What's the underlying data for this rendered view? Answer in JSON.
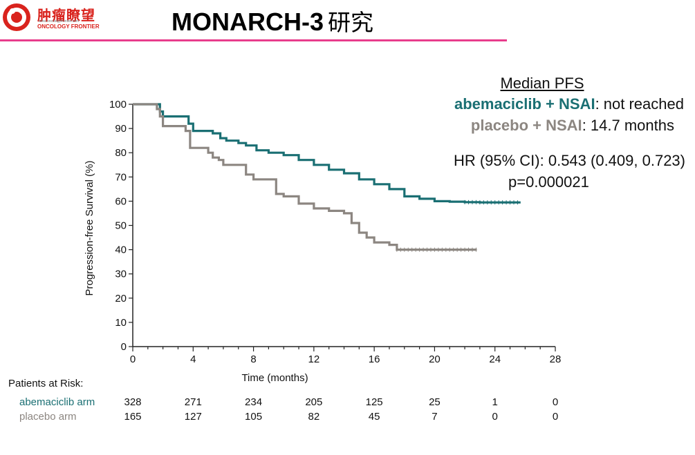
{
  "header": {
    "logo_cn": "肿瘤瞭望",
    "logo_en": "ONCOLOGY FRONTIER",
    "logo_url": "www.oncologyfrontier.com",
    "title_en": "MONARCH-3",
    "title_cn": "研究",
    "rule_color": "#e83c8c"
  },
  "annotations": {
    "median_heading": "Median PFS",
    "arm_a_name": "abemaciclib + NSAI",
    "arm_a_value": ": not reached",
    "arm_b_name": "placebo + NSAI",
    "arm_b_value": ": 14.7 months",
    "hr": "HR (95% CI): 0.543 (0.409, 0.723)",
    "p_value": "p=0.000021"
  },
  "chart_data": {
    "type": "line",
    "title": "",
    "xlabel": "Time (months)",
    "ylabel": "Progression-free Survival (%)",
    "xlim": [
      0,
      28
    ],
    "ylim": [
      0,
      100
    ],
    "x_ticks": [
      0,
      4,
      8,
      12,
      16,
      20,
      24,
      28
    ],
    "y_ticks": [
      0,
      10,
      20,
      30,
      40,
      50,
      60,
      70,
      80,
      90,
      100
    ],
    "grid": false,
    "series": [
      {
        "name": "abemaciclib + NSAI",
        "color": "#1a6f73",
        "x": [
          0,
          1.3,
          1.8,
          2.0,
          3.7,
          4.0,
          5.3,
          5.8,
          6.2,
          7.0,
          7.5,
          8.2,
          9.0,
          10.0,
          11.0,
          12.0,
          13.0,
          14.0,
          15.0,
          16.0,
          17.0,
          18.0,
          19.0,
          20.0,
          21.0,
          22.0,
          23.0,
          24.0,
          25.7
        ],
        "y": [
          100,
          100,
          97,
          95,
          92,
          89,
          88,
          86,
          85,
          84,
          83,
          81,
          80,
          79,
          77,
          75,
          73,
          71.5,
          69,
          67,
          65,
          62,
          61,
          60,
          59.8,
          59.6,
          59.5,
          59.5,
          59.5
        ]
      },
      {
        "name": "placebo + NSAI",
        "color": "#8c8681",
        "x": [
          0,
          1.3,
          1.6,
          1.8,
          2.0,
          3.5,
          3.8,
          5.0,
          5.3,
          5.7,
          6.0,
          7.0,
          7.5,
          8.0,
          8.2,
          9.0,
          9.5,
          10.0,
          10.5,
          11.0,
          12.0,
          13.0,
          14.0,
          14.5,
          15.0,
          15.5,
          16.0,
          17.0,
          17.5,
          18.0,
          20.0,
          22.8
        ],
        "y": [
          100,
          100,
          98,
          95,
          91,
          89,
          82,
          80,
          78,
          77,
          75,
          75,
          71,
          69,
          69,
          69,
          63,
          62,
          62,
          59,
          57,
          56,
          55,
          51,
          47,
          45,
          43,
          42,
          40,
          40,
          40,
          40
        ]
      }
    ],
    "risk_table": {
      "heading": "Patients at Risk:",
      "times": [
        0,
        4,
        8,
        12,
        16,
        20,
        24,
        28
      ],
      "rows": [
        {
          "label": "abemaciclib arm",
          "values": [
            "328",
            "271",
            "234",
            "205",
            "125",
            "25",
            "1",
            "0"
          ]
        },
        {
          "label": "placebo arm",
          "values": [
            "165",
            "127",
            "105",
            "82",
            "45",
            "7",
            "0",
            "0"
          ]
        }
      ]
    }
  }
}
